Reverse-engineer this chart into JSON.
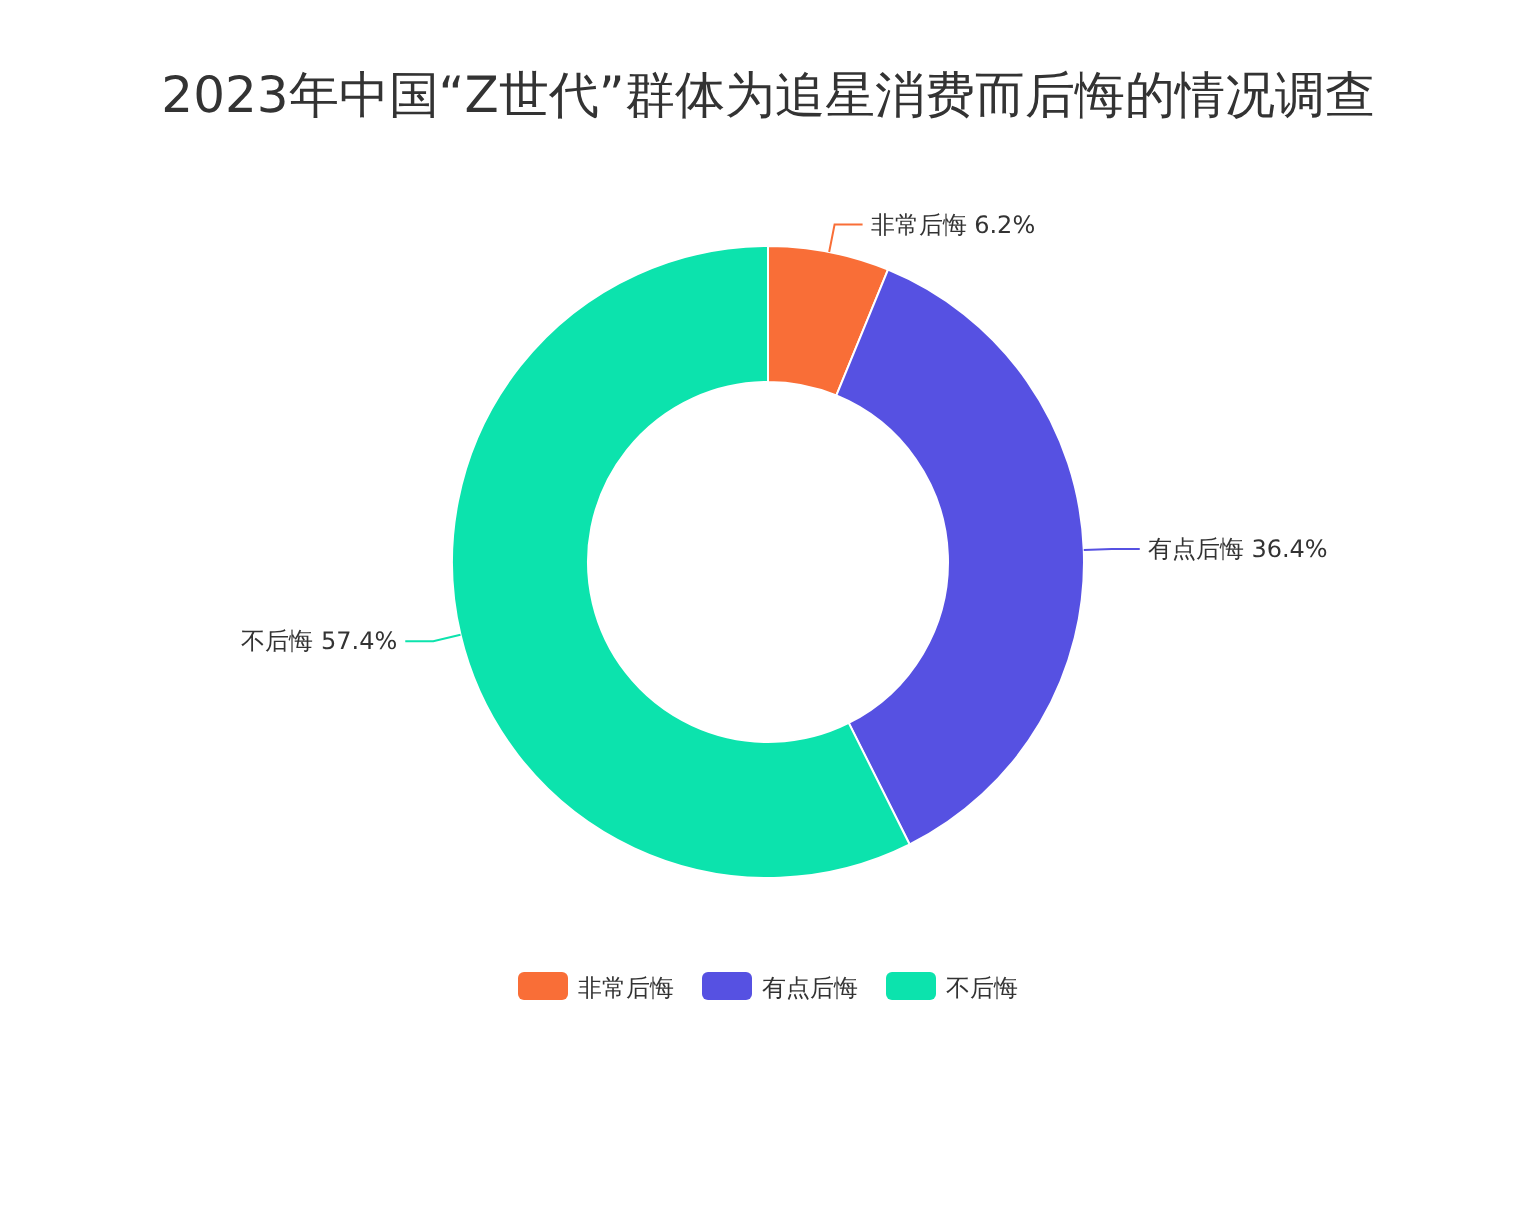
{
  "chart_data": {
    "type": "donut",
    "title": "2023年中国“Z世代”群体为追星消费而后悔的情况调查",
    "categories": [
      "非常后悔",
      "有点后悔",
      "不后悔"
    ],
    "values": [
      6.2,
      36.4,
      57.4
    ],
    "colors": [
      "#f96e37",
      "#5651e2",
      "#0ce3ad"
    ],
    "value_labels": [
      "6.2%",
      "36.4%",
      "57.4%"
    ],
    "legend": "bottom"
  }
}
